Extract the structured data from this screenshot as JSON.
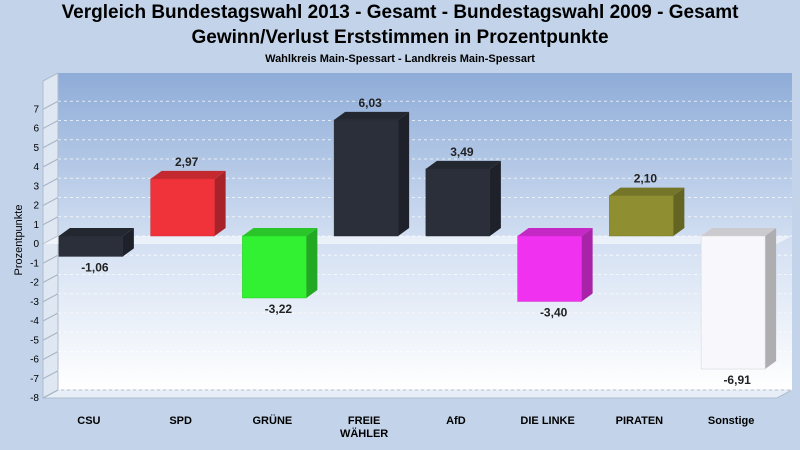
{
  "title": "Vergleich Bundestagswahl 2013 - Gesamt - Bundestagswahl 2009 - Gesamt",
  "title2": "Gewinn/Verlust Erststimmen in Prozentpunkte",
  "subtitle": "Wahlkreis Main-Spessart - Landkreis Main-Spessart",
  "chart_data": {
    "type": "bar",
    "title": "Vergleich Bundestagswahl 2013 - Gesamt - Bundestagswahl 2009 - Gesamt",
    "subtitle": "Gewinn/Verlust Erststimmen in Prozentpunkte",
    "ylabel": "Prozentpunkte",
    "xlabel": "",
    "ylim": [
      -8,
      7
    ],
    "yticks": [
      7,
      6,
      5,
      4,
      3,
      2,
      1,
      0,
      -1,
      -2,
      -3,
      -4,
      -5,
      -6,
      -7,
      -8
    ],
    "grid": true,
    "categories": [
      "CSU",
      "SPD",
      "GRÜNE",
      "FREIE WÄHLER",
      "AfD",
      "DIE LINKE",
      "PIRATEN",
      "Sonstige"
    ],
    "category_lines": [
      [
        "CSU"
      ],
      [
        "SPD"
      ],
      [
        "GRÜNE"
      ],
      [
        "FREIE",
        "WÄHLER"
      ],
      [
        "AfD"
      ],
      [
        "DIE LINKE"
      ],
      [
        "PIRATEN"
      ],
      [
        "Sonstige"
      ]
    ],
    "values": [
      -1.06,
      2.97,
      -3.22,
      6.03,
      3.49,
      -3.4,
      2.1,
      -6.91
    ],
    "value_labels": [
      "-1,06",
      "2,97",
      "-3,22",
      "6,03",
      "3,49",
      "-3,40",
      "2,10",
      "-6,91"
    ],
    "colors": [
      "#2b2f3a",
      "#f0323a",
      "#32f032",
      "#2b2f3a",
      "#2b2f3a",
      "#f032f0",
      "#8f8f32",
      "#f8f8fc"
    ]
  }
}
